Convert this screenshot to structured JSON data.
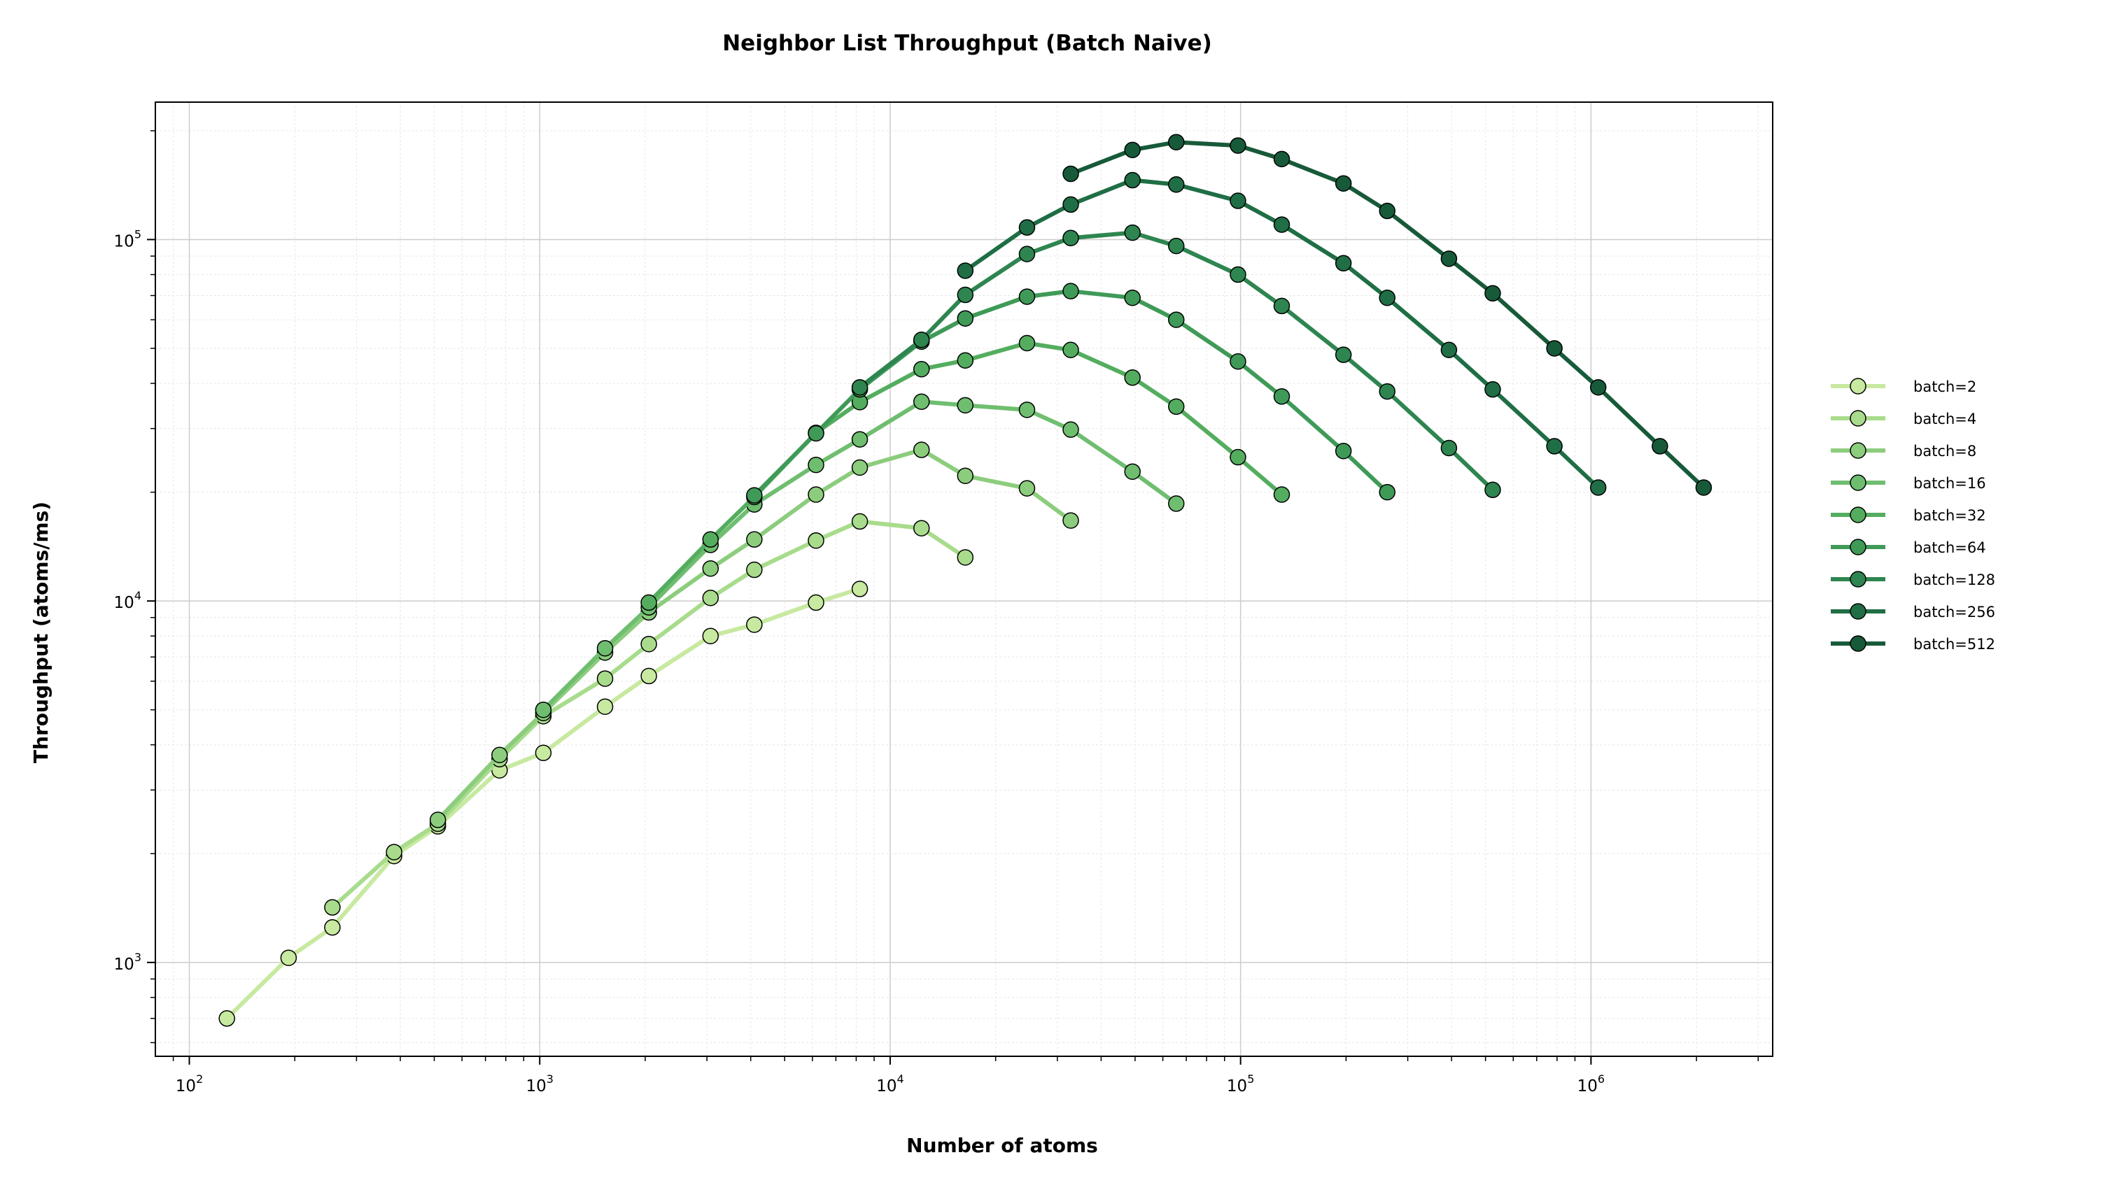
{
  "chart_data": {
    "type": "line",
    "title": "Neighbor List Throughput (Batch Naive)",
    "xlabel": "Number of atoms",
    "ylabel": "Throughput (atoms/ms)",
    "xscale": "log",
    "yscale": "log",
    "xlim": [
      80,
      3300000
    ],
    "ylim": [
      550,
      240000
    ],
    "xticks": [
      {
        "value": 100,
        "base": "10",
        "exp": "2"
      },
      {
        "value": 1000,
        "base": "10",
        "exp": "3"
      },
      {
        "value": 10000,
        "base": "10",
        "exp": "4"
      },
      {
        "value": 100000,
        "base": "10",
        "exp": "5"
      },
      {
        "value": 1000000,
        "base": "10",
        "exp": "6"
      }
    ],
    "yticks": [
      {
        "value": 1000,
        "base": "10",
        "exp": "3"
      },
      {
        "value": 10000,
        "base": "10",
        "exp": "4"
      },
      {
        "value": 100000,
        "base": "10",
        "exp": "5"
      }
    ],
    "grid": true,
    "legend_position": "right-outside",
    "series": [
      {
        "name": "batch=2",
        "color": "#c7e9a0",
        "x": [
          128,
          192,
          256,
          384,
          512,
          768,
          1024,
          1536,
          2048,
          3072,
          4096,
          6144,
          8192
        ],
        "y": [
          700,
          1030,
          1250,
          1970,
          2380,
          3400,
          3800,
          5100,
          6200,
          8000,
          8600,
          9900,
          10800
        ]
      },
      {
        "name": "batch=4",
        "color": "#a8dc8c",
        "x": [
          256,
          384,
          512,
          768,
          1024,
          1536,
          2048,
          3072,
          4096,
          6144,
          8192,
          12288,
          16384
        ],
        "y": [
          1420,
          2020,
          2420,
          3650,
          4800,
          6100,
          7600,
          10200,
          12200,
          14700,
          16600,
          15900,
          13200
        ]
      },
      {
        "name": "batch=8",
        "color": "#8ccd7d",
        "x": [
          512,
          768,
          1024,
          1536,
          2048,
          3072,
          4096,
          6144,
          8192,
          12288,
          16384,
          24576,
          32768
        ],
        "y": [
          2480,
          3750,
          4900,
          7200,
          9300,
          12300,
          14800,
          19700,
          23400,
          26200,
          22200,
          20500,
          16700
        ]
      },
      {
        "name": "batch=16",
        "color": "#6fbe70",
        "x": [
          1024,
          1536,
          2048,
          3072,
          4096,
          6144,
          8192,
          12288,
          16384,
          24576,
          32768,
          49152,
          65536
        ],
        "y": [
          5000,
          7400,
          9600,
          14300,
          18500,
          23800,
          28000,
          35600,
          34800,
          33800,
          29800,
          22800,
          18600
        ]
      },
      {
        "name": "batch=32",
        "color": "#54ad5f",
        "x": [
          2048,
          3072,
          4096,
          6144,
          8192,
          12288,
          16384,
          24576,
          32768,
          49152,
          65536,
          98304,
          131072
        ],
        "y": [
          9900,
          14800,
          19400,
          29200,
          35500,
          43800,
          46300,
          51700,
          49500,
          41500,
          34500,
          25000,
          19700
        ]
      },
      {
        "name": "batch=64",
        "color": "#3f9a58",
        "x": [
          4096,
          6144,
          8192,
          12288,
          16384,
          24576,
          32768,
          49152,
          65536,
          98304,
          131072,
          196608,
          262144
        ],
        "y": [
          19600,
          29100,
          38500,
          52200,
          60500,
          69500,
          72000,
          69000,
          60000,
          46000,
          36800,
          26000,
          20000
        ]
      },
      {
        "name": "batch=128",
        "color": "#2e8550",
        "x": [
          8192,
          12288,
          16384,
          24576,
          32768,
          49152,
          65536,
          98304,
          131072,
          196608,
          262144,
          393216,
          524288
        ],
        "y": [
          39000,
          52800,
          70300,
          91200,
          101000,
          104500,
          96000,
          80000,
          65500,
          48000,
          38000,
          26500,
          20300
        ]
      },
      {
        "name": "batch=256",
        "color": "#1f6e45",
        "x": [
          16384,
          24576,
          32768,
          49152,
          65536,
          98304,
          131072,
          196608,
          262144,
          393216,
          524288,
          786432,
          1048576
        ],
        "y": [
          82000,
          108000,
          125000,
          146000,
          142000,
          128000,
          110000,
          86000,
          69000,
          49500,
          38500,
          26800,
          20600
        ]
      },
      {
        "name": "batch=512",
        "color": "#175a3a",
        "x": [
          32768,
          49152,
          65536,
          98304,
          131072,
          196608,
          262144,
          393216,
          524288,
          786432,
          1048576,
          1572864,
          2097152
        ],
        "y": [
          152000,
          177000,
          186000,
          182000,
          167000,
          143000,
          120000,
          88500,
          71000,
          50000,
          39000,
          26800,
          20600
        ]
      }
    ]
  }
}
